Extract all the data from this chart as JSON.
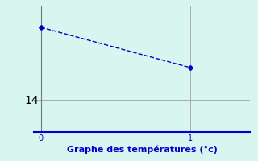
{
  "x": [
    0,
    1
  ],
  "y": [
    18.5,
    16.0
  ],
  "line_color": "#0000cc",
  "marker": "D",
  "marker_size": 3,
  "linestyle": "--",
  "linewidth": 1.0,
  "background_color": "#d8f5f0",
  "grid_color": "#aaaaaa",
  "xlabel": "Graphe des températures (°c)",
  "xlabel_color": "#0000cc",
  "xlabel_fontsize": 8,
  "xlim": [
    -0.05,
    1.4
  ],
  "ylim": [
    12.0,
    19.8
  ],
  "yticks": [
    14
  ],
  "ytick_labels": [
    "14"
  ],
  "xticks": [
    0,
    1
  ],
  "xtick_labels": [
    "0",
    "1"
  ],
  "tick_color": "#0000cc",
  "tick_fontsize": 7,
  "spine_bottom_color": "#0000cc",
  "spine_left_color": "#777777",
  "vline_x": 1,
  "hline_y": 14,
  "fig_width": 3.2,
  "fig_height": 2.0,
  "fig_dpi": 100
}
